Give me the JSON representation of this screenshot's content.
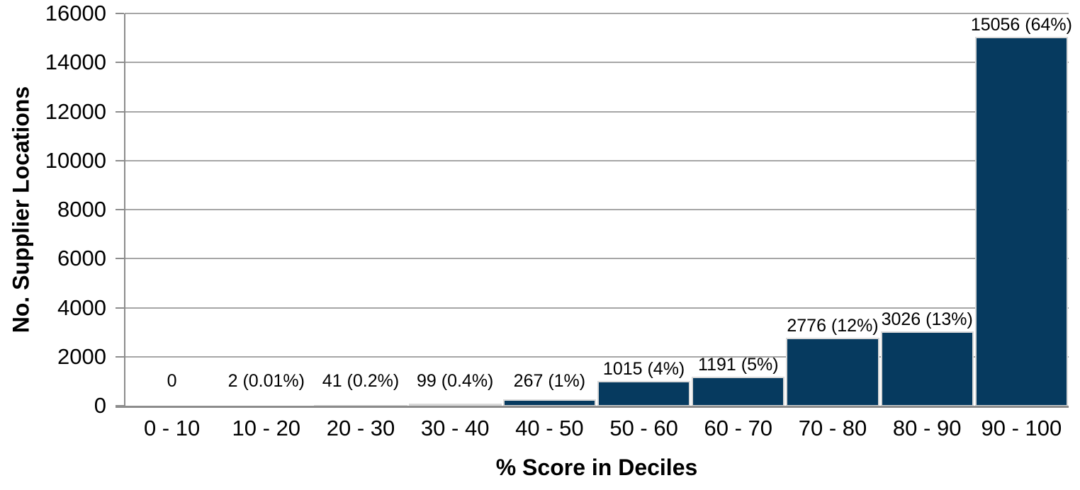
{
  "chart_data": {
    "type": "bar",
    "title": "",
    "xlabel": "% Score in Deciles",
    "ylabel": "No. Supplier Locations",
    "categories": [
      "0 - 10",
      "10 - 20",
      "20 - 30",
      "30 - 40",
      "40 - 50",
      "50 - 60",
      "60 - 70",
      "70 - 80",
      "80 - 90",
      "90 - 100"
    ],
    "values": [
      0,
      2,
      41,
      99,
      267,
      1015,
      1191,
      2776,
      3026,
      15056
    ],
    "bar_labels": [
      "0",
      "2 (0.01%)",
      "41 (0.2%)",
      "99 (0.4%)",
      "267 (1%)",
      "1015 (4%)",
      "1191 (5%)",
      "2776 (12%)",
      "3026 (13%)",
      "15056 (64%)"
    ],
    "ylim": [
      0,
      16000
    ],
    "ytick_step": 2000,
    "ytick_labels": [
      "0",
      "2000",
      "4000",
      "6000",
      "8000",
      "10000",
      "12000",
      "14000",
      "16000"
    ],
    "grid": true,
    "legend_position": "none",
    "bar_color": "#063a5f",
    "bar_border_color": "#d9d9d9",
    "gridline_color": "#a6a6a6",
    "axis_color": "#8c8c8c",
    "text_color": "#000000",
    "background_color": "#ffffff"
  }
}
